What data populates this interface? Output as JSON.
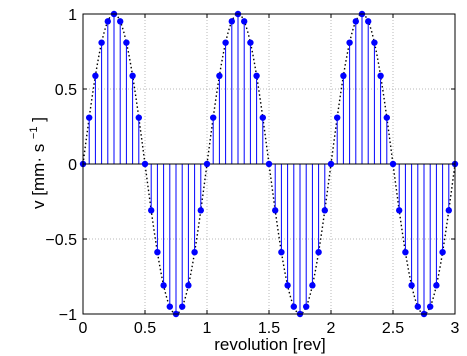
{
  "chart_data": {
    "type": "line",
    "title": "",
    "xlabel": "revolution [rev]",
    "ylabel_main": "v [mm· s",
    "ylabel_sup": "−1",
    "ylabel_end": "]",
    "xlim": [
      0,
      3
    ],
    "ylim": [
      -1,
      1
    ],
    "x_ticks": [
      0,
      0.5,
      1,
      1.5,
      2,
      2.5,
      3
    ],
    "x_tick_labels": [
      "0",
      "0.5",
      "1",
      "1.5",
      "2",
      "2.5",
      "3"
    ],
    "y_ticks": [
      -1,
      -0.5,
      0,
      0.5,
      1
    ],
    "y_tick_labels": [
      "−1",
      "−0.5",
      "0",
      "0.5",
      "1"
    ],
    "grid": true,
    "legend": "none",
    "series": [
      {
        "style": "stem",
        "color": "#0000ff",
        "baseline_color": "#000000",
        "x": [
          0,
          0.05,
          0.1,
          0.15,
          0.2,
          0.25,
          0.3,
          0.35,
          0.4,
          0.45,
          0.5,
          0.55,
          0.6,
          0.65,
          0.7,
          0.75,
          0.8,
          0.85,
          0.9,
          0.95,
          1.0,
          1.05,
          1.1,
          1.15,
          1.2,
          1.25,
          1.3,
          1.35,
          1.4,
          1.45,
          1.5,
          1.55,
          1.6,
          1.65,
          1.7,
          1.75,
          1.8,
          1.85,
          1.9,
          1.95,
          2.0,
          2.05,
          2.1,
          2.15,
          2.2,
          2.25,
          2.3,
          2.35,
          2.4,
          2.45,
          2.5,
          2.55,
          2.6,
          2.65,
          2.7,
          2.75,
          2.8,
          2.85,
          2.9,
          2.95,
          3.0
        ],
        "y": [
          0,
          0.309,
          0.588,
          0.809,
          0.951,
          1.0,
          0.951,
          0.809,
          0.588,
          0.309,
          0,
          -0.309,
          -0.588,
          -0.809,
          -0.951,
          -1.0,
          -0.951,
          -0.809,
          -0.588,
          -0.309,
          0,
          0.309,
          0.588,
          0.809,
          0.951,
          1.0,
          0.951,
          0.809,
          0.588,
          0.309,
          0,
          -0.309,
          -0.588,
          -0.809,
          -0.951,
          -1.0,
          -0.951,
          -0.809,
          -0.588,
          -0.309,
          0,
          0.309,
          0.588,
          0.809,
          0.951,
          1.0,
          0.951,
          0.809,
          0.588,
          0.309,
          0,
          -0.309,
          -0.588,
          -0.809,
          -0.951,
          -1.0,
          -0.951,
          -0.809,
          -0.588,
          -0.309,
          0
        ]
      },
      {
        "style": "dotted-line",
        "color": "#000000",
        "function": "sin(2πx)"
      }
    ]
  }
}
